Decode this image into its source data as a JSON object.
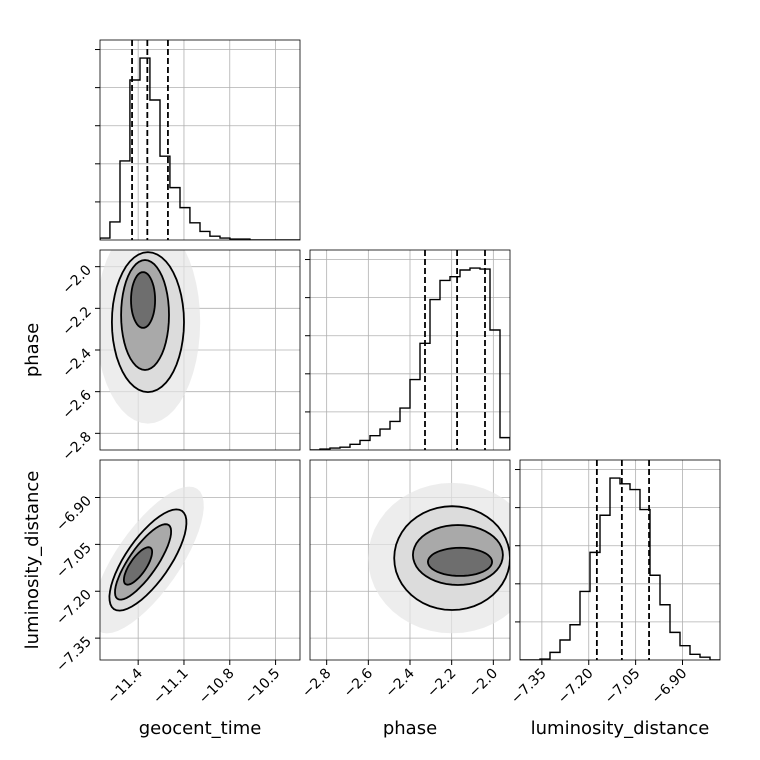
{
  "chart_data": {
    "type": "corner",
    "grid": true,
    "color": "#000000",
    "parameters": [
      {
        "name": "geocent_time",
        "lim": [
          -11.65,
          -10.34
        ],
        "ticks": [
          {
            "value": -11.4,
            "label": "−11.4"
          },
          {
            "value": -11.1,
            "label": "−11.1"
          },
          {
            "value": -10.8,
            "label": "−10.8"
          },
          {
            "value": -10.5,
            "label": "−10.5"
          }
        ],
        "quantiles": [
          -11.44,
          -11.34,
          -11.205
        ],
        "bins": [
          -11.65,
          -11.585,
          -11.519,
          -11.454,
          -11.388,
          -11.323,
          -11.257,
          -11.192,
          -11.126,
          -11.061,
          -10.995,
          -10.93,
          -10.864,
          -10.799,
          -10.733,
          -10.668,
          -10.602,
          -10.537,
          -10.471,
          -10.406,
          -10.34
        ],
        "counts": [
          2,
          19,
          83,
          168,
          191,
          147,
          88,
          55,
          34,
          18,
          9,
          4,
          2,
          1,
          1,
          0,
          0,
          0,
          0,
          0
        ]
      },
      {
        "name": "phase",
        "lim": [
          -2.88,
          -1.92
        ],
        "ticks": [
          {
            "value": -2.8,
            "label": "−2.8"
          },
          {
            "value": -2.6,
            "label": "−2.6"
          },
          {
            "value": -2.4,
            "label": "−2.4"
          },
          {
            "value": -2.2,
            "label": "−2.2"
          },
          {
            "value": -2.0,
            "label": "−2.0"
          }
        ],
        "quantiles": [
          -2.328,
          -2.174,
          -2.04
        ],
        "bins": [
          -2.88,
          -2.832,
          -2.784,
          -2.736,
          -2.688,
          -2.64,
          -2.592,
          -2.544,
          -2.496,
          -2.448,
          -2.4,
          -2.352,
          -2.304,
          -2.256,
          -2.208,
          -2.16,
          -2.112,
          -2.064,
          -2.016,
          -1.968,
          -1.92
        ],
        "counts": [
          0,
          1,
          2,
          3,
          6,
          10,
          15,
          22,
          30,
          44,
          74,
          112,
          158,
          178,
          182,
          189,
          191,
          190,
          126,
          13
        ]
      },
      {
        "name": "luminosity_distance",
        "lim": [
          -7.42,
          -6.78
        ],
        "ticks": [
          {
            "value": -7.35,
            "label": "−7.35"
          },
          {
            "value": -7.2,
            "label": "−7.20"
          },
          {
            "value": -7.05,
            "label": "−7.05"
          },
          {
            "value": -6.9,
            "label": "−6.90"
          }
        ],
        "quantiles": [
          -7.174,
          -7.094,
          -7.007
        ],
        "bins": [
          -7.42,
          -7.388,
          -7.356,
          -7.324,
          -7.292,
          -7.26,
          -7.228,
          -7.196,
          -7.164,
          -7.132,
          -7.1,
          -7.068,
          -7.036,
          -7.004,
          -6.972,
          -6.94,
          -6.908,
          -6.876,
          -6.844,
          -6.812,
          -6.78
        ],
        "counts": [
          0,
          0,
          1,
          8,
          21,
          37,
          72,
          113,
          152,
          191,
          185,
          179,
          158,
          89,
          58,
          29,
          15,
          6,
          3,
          0
        ]
      }
    ],
    "count_lim": [
      0,
      210
    ],
    "count_ticks": [
      40,
      80,
      120,
      160,
      200
    ],
    "pairs": [
      {
        "x": 0,
        "y": 1,
        "contours": [
          {
            "center": [
              -11.336,
              -2.266
            ],
            "axes": [
              [
                0.236,
                0
              ],
              [
                0,
                0.336
              ]
            ]
          },
          {
            "center": [
              -11.355,
              -2.232
            ],
            "axes": [
              [
                0.157,
                0
              ],
              [
                0,
                0.264
              ]
            ]
          },
          {
            "center": [
              -11.368,
              -2.16
            ],
            "axes": [
              [
                0.079,
                0
              ],
              [
                0,
                0.134
              ]
            ]
          }
        ]
      },
      {
        "x": 0,
        "y": 2,
        "contours": [
          {
            "center": [
              -11.336,
              -7.1
            ],
            "axes": [
              [
                0.223,
                0.157
              ],
              [
                0.118,
                -0.04
              ]
            ]
          },
          {
            "center": [
              -11.368,
              -7.106
            ],
            "axes": [
              [
                0.168,
                0.118
              ],
              [
                0.075,
                -0.026
              ]
            ]
          },
          {
            "center": [
              -11.401,
              -7.119
            ],
            "axes": [
              [
                0.082,
                0.058
              ],
              [
                0.043,
                -0.015
              ]
            ]
          }
        ]
      },
      {
        "x": 1,
        "y": 2,
        "contours": [
          {
            "center": [
              -2.198,
              -7.094
            ],
            "axes": [
              [
                0.278,
                0
              ],
              [
                0,
                0.166
              ]
            ]
          },
          {
            "center": [
              -2.17,
              -7.084
            ],
            "axes": [
              [
                0.216,
                0
              ],
              [
                0,
                0.096
              ]
            ]
          },
          {
            "center": [
              -2.16,
              -7.106
            ],
            "axes": [
              [
                0.154,
                0
              ],
              [
                0,
                0.045
              ]
            ]
          }
        ]
      }
    ]
  }
}
